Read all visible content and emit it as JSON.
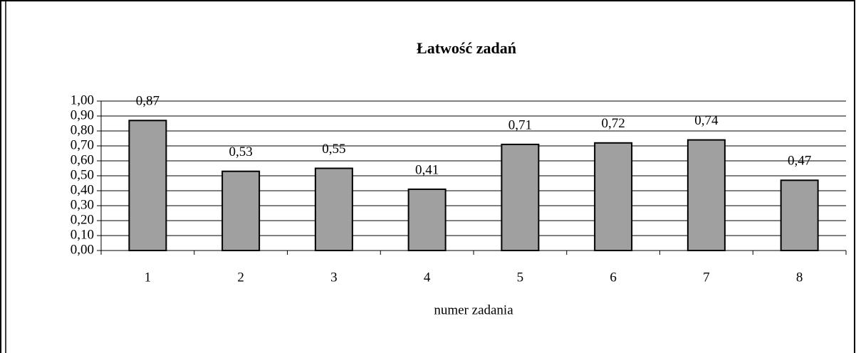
{
  "chart_data": {
    "type": "bar",
    "title": "Łatwość zadań",
    "x_label": "numer zadania",
    "categories": [
      "1",
      "2",
      "3",
      "4",
      "5",
      "6",
      "7",
      "8"
    ],
    "values": [
      0.87,
      0.53,
      0.55,
      0.41,
      0.71,
      0.72,
      0.74,
      0.47
    ],
    "value_labels": [
      "0,87",
      "0,53",
      "0,55",
      "0,41",
      "0,71",
      "0,72",
      "0,74",
      "0,47"
    ],
    "color": "#a0a0a0",
    "ylim": [
      0,
      1
    ],
    "yticks": [
      {
        "value": 0,
        "label": "0,00"
      },
      {
        "value": 0.1,
        "label": "0,10"
      },
      {
        "value": 0.2,
        "label": "0,20"
      },
      {
        "value": 0.3,
        "label": "0,30"
      },
      {
        "value": 0.4,
        "label": "0,40"
      },
      {
        "value": 0.5,
        "label": "0,50"
      },
      {
        "value": 0.6,
        "label": "0,60"
      },
      {
        "value": 0.7,
        "label": "0,70"
      },
      {
        "value": 0.8,
        "label": "0,80"
      },
      {
        "value": 0.9,
        "label": "0,90"
      },
      {
        "value": 1,
        "label": "1,00"
      }
    ],
    "grid": true
  }
}
